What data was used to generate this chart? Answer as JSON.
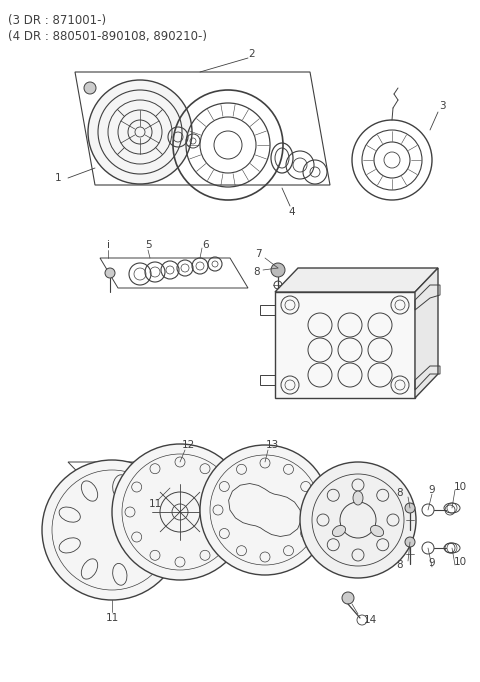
{
  "title_line1": "(3 DR : 871001-)",
  "title_line2": "(4 DR : 880501-890108, 890210-)",
  "bg_color": "#ffffff",
  "line_color": "#404040",
  "text_color": "#404040",
  "title_fontsize": 8.5,
  "label_fontsize": 7.5,
  "fig_width": 4.8,
  "fig_height": 6.82,
  "dpi": 100
}
